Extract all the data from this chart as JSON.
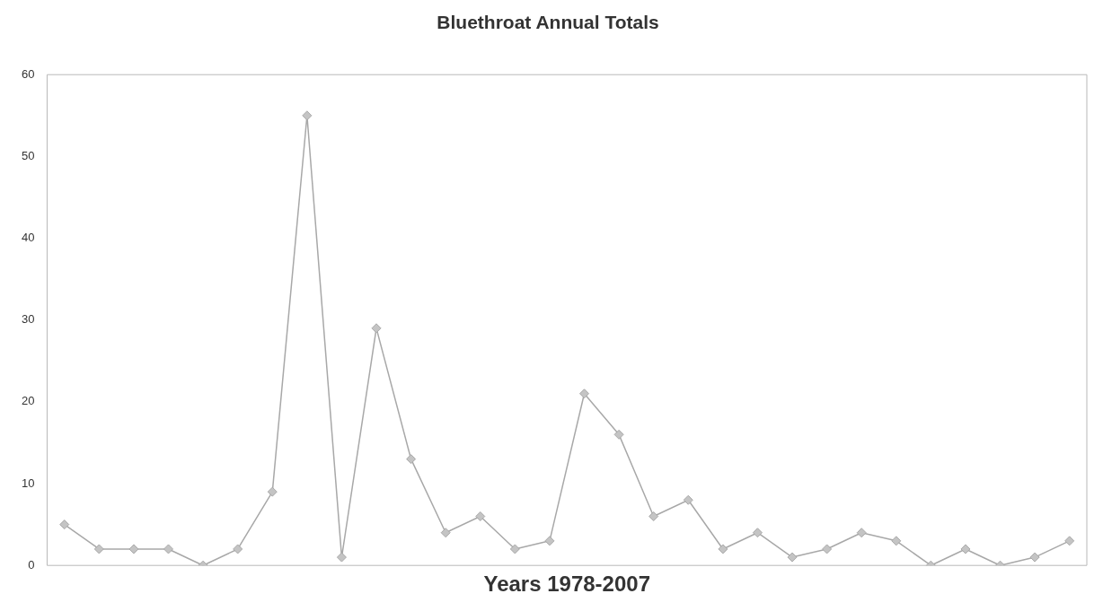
{
  "chart_data": {
    "type": "line",
    "title": "Bluethroat Annual Totals",
    "xlabel": "Years 1978-2007",
    "categories": [
      null,
      null,
      null,
      null,
      null,
      null,
      null,
      null,
      null,
      null,
      null,
      null,
      null,
      null,
      null,
      null,
      null,
      null,
      null,
      null,
      null,
      null,
      null,
      null,
      null,
      null,
      null,
      null,
      null,
      null
    ],
    "series": [
      {
        "color": "#a8a8a8",
        "values": [
          5,
          2,
          2,
          2,
          0,
          2,
          9,
          55,
          1,
          29,
          13,
          4,
          6,
          2,
          3,
          21,
          16,
          6,
          8,
          2,
          4,
          1,
          2,
          4,
          3,
          0,
          2,
          0,
          1,
          3
        ]
      }
    ],
    "ylim": [
      0,
      60
    ],
    "yticks": [
      0,
      10,
      20,
      30,
      40,
      50,
      60
    ],
    "grid": false,
    "legend": false,
    "marker": "diamond",
    "line_style": "solid",
    "tick_labels": "y"
  }
}
